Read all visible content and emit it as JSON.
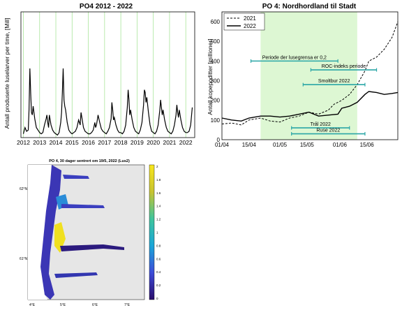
{
  "chart_data": [
    {
      "type": "line",
      "title": "PO4 2012 - 2022",
      "ylabel": "Antall produserte luselarver per time, [Mill]",
      "xlabel": "",
      "x_ticks": [
        "2012",
        "2013",
        "2014",
        "2015",
        "2016",
        "2017",
        "2018",
        "2019",
        "2020",
        "2021",
        "2022"
      ],
      "xlim": [
        2011.85,
        2022.55
      ],
      "ylim": [
        0,
        100
      ],
      "y_ticks": [
        0,
        10,
        20,
        30,
        40,
        50,
        60,
        70,
        80,
        90,
        100
      ],
      "grid": "vertical green lines at each year",
      "series": [
        {
          "x": [
            2012.0,
            2012.1,
            2012.2,
            2012.3,
            2012.35,
            2012.4,
            2012.45,
            2012.5,
            2012.55,
            2012.6,
            2012.7,
            2012.8,
            2012.9,
            2013.0,
            2013.1,
            2013.2,
            2013.3,
            2013.4,
            2013.45,
            2013.5,
            2013.55,
            2013.6,
            2013.7,
            2013.8,
            2013.9,
            2014.0,
            2014.1,
            2014.2,
            2014.3,
            2014.35,
            2014.4,
            2014.45,
            2014.5,
            2014.55,
            2014.6,
            2014.7,
            2014.8,
            2014.9,
            2015.0,
            2015.1,
            2015.2,
            2015.3,
            2015.4,
            2015.45,
            2015.5,
            2015.55,
            2015.6,
            2015.7,
            2015.8,
            2015.9,
            2016.0,
            2016.1,
            2016.2,
            2016.3,
            2016.4,
            2016.45,
            2016.5,
            2016.55,
            2016.6,
            2016.7,
            2016.8,
            2016.9,
            2017.0,
            2017.1,
            2017.2,
            2017.3,
            2017.4,
            2017.45,
            2017.5,
            2017.55,
            2017.6,
            2017.7,
            2017.8,
            2017.9,
            2018.0,
            2018.1,
            2018.2,
            2018.3,
            2018.4,
            2018.45,
            2018.5,
            2018.55,
            2018.6,
            2018.7,
            2018.8,
            2018.9,
            2019.0,
            2019.1,
            2019.2,
            2019.3,
            2019.4,
            2019.45,
            2019.5,
            2019.55,
            2019.6,
            2019.7,
            2019.8,
            2019.9,
            2020.0,
            2020.1,
            2020.2,
            2020.3,
            2020.4,
            2020.45,
            2020.5,
            2020.55,
            2020.6,
            2020.7,
            2020.8,
            2020.9,
            2021.0,
            2021.1,
            2021.2,
            2021.3,
            2021.4,
            2021.45,
            2021.5,
            2021.55,
            2021.6,
            2021.7,
            2021.8,
            2021.9,
            2022.0,
            2022.1,
            2022.2,
            2022.3,
            2022.4
          ],
          "y": [
            3,
            8,
            5,
            6,
            22,
            55,
            35,
            20,
            18,
            25,
            15,
            8,
            6,
            4,
            3,
            4,
            10,
            15,
            18,
            12,
            8,
            18,
            10,
            6,
            4,
            3,
            2,
            4,
            12,
            20,
            35,
            55,
            30,
            25,
            22,
            12,
            6,
            4,
            3,
            4,
            5,
            8,
            14,
            12,
            10,
            20,
            16,
            8,
            5,
            4,
            3,
            3,
            4,
            6,
            12,
            8,
            10,
            14,
            18,
            12,
            7,
            5,
            4,
            3,
            5,
            8,
            15,
            28,
            22,
            14,
            16,
            10,
            6,
            4,
            4,
            3,
            5,
            10,
            24,
            38,
            30,
            18,
            22,
            14,
            8,
            5,
            4,
            3,
            6,
            12,
            26,
            38,
            36,
            28,
            32,
            20,
            10,
            5,
            4,
            3,
            5,
            10,
            22,
            30,
            24,
            18,
            22,
            14,
            8,
            5,
            4,
            3,
            5,
            10,
            18,
            26,
            20,
            16,
            22,
            14,
            8,
            5,
            4,
            4,
            5,
            10,
            24
          ]
        }
      ]
    },
    {
      "type": "line",
      "title": "PO 4: Nordhordland til Stadt",
      "ylabel": "Antall kopepoditter [millioner]",
      "xlabel": "",
      "x_ticks": [
        "01/04",
        "15/04",
        "01/05",
        "15/05",
        "01/06",
        "15/06"
      ],
      "x_tick_days": [
        0,
        14,
        30,
        44,
        61,
        75
      ],
      "xlim": [
        0,
        91
      ],
      "ylim": [
        0,
        650
      ],
      "y_ticks": [
        0,
        100,
        200,
        300,
        400,
        500,
        600
      ],
      "highlight_span": [
        20,
        70
      ],
      "legend": {
        "placement": "top-left",
        "entries": [
          {
            "label": "2021",
            "style": "dashed"
          },
          {
            "label": "2022",
            "style": "solid"
          }
        ]
      },
      "series": [
        {
          "name": "2021",
          "x": [
            0,
            5,
            10,
            14,
            20,
            25,
            30,
            35,
            40,
            45,
            50,
            55,
            58,
            62,
            66,
            70,
            74,
            76,
            80,
            84,
            88,
            91
          ],
          "y": [
            80,
            85,
            75,
            100,
            110,
            95,
            90,
            110,
            120,
            140,
            130,
            150,
            180,
            200,
            230,
            280,
            350,
            400,
            420,
            460,
            520,
            600
          ]
        },
        {
          "name": "2022",
          "x": [
            0,
            5,
            10,
            14,
            20,
            25,
            30,
            35,
            40,
            45,
            50,
            55,
            60,
            62,
            66,
            70,
            74,
            76,
            80,
            84,
            88,
            91
          ],
          "y": [
            110,
            100,
            95,
            110,
            120,
            120,
            115,
            120,
            130,
            140,
            120,
            125,
            130,
            160,
            170,
            190,
            230,
            245,
            240,
            230,
            235,
            240
          ]
        }
      ],
      "periods": [
        {
          "label": "Periode der lusegrensa er 0,2",
          "from": 15,
          "to": 60,
          "y": 400
        },
        {
          "label": "ROC-indeks periode",
          "from": 46,
          "to": 80,
          "y": 355
        },
        {
          "label": "Smoltbur 2022",
          "from": 42,
          "to": 74,
          "y": 280
        },
        {
          "label": "Trål 2022",
          "from": 36,
          "to": 66,
          "y": 60
        },
        {
          "label": "Ruse 2022",
          "from": 36,
          "to": 74,
          "y": 30
        }
      ]
    }
  ],
  "map": {
    "title": "PO 4, 30 dager sentrert om 19/5, 2022 (Lus2)",
    "lon_ticks": [
      "4°E",
      "5°E",
      "6°E",
      "7°E"
    ],
    "lat_ticks": [
      "62°N",
      "61°N"
    ],
    "colorbar_ticks": [
      "2",
      "1.8",
      "1.6",
      "1.4",
      "1.2",
      "1",
      "0.8",
      "0.6",
      "0.4",
      "0.2",
      "0"
    ]
  }
}
